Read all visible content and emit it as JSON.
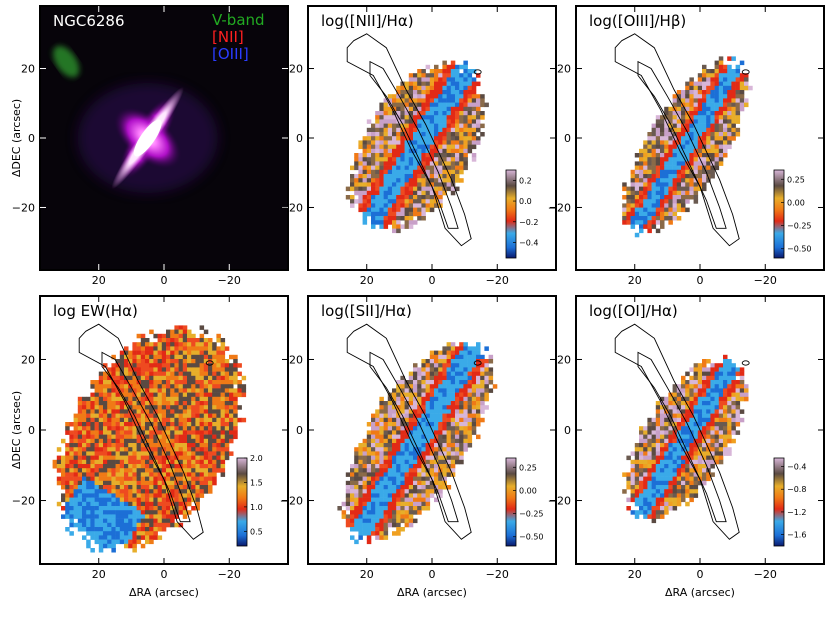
{
  "figure": {
    "x_axis_label": "ΔRA (arcsec)",
    "y_axis_label": "ΔDEC (arcsec)"
  },
  "chart_data": [
    {
      "type": "heatmap",
      "title": "NGC6286",
      "legend": [
        {
          "label": "V-band",
          "color": "#22aa22"
        },
        {
          "label": "[NII]",
          "color": "#ff2020"
        },
        {
          "label": "[OIII]",
          "color": "#2a3cff"
        }
      ],
      "xticks": [
        "20",
        "0",
        "−20"
      ],
      "yticks": [
        "20",
        "0",
        "−20"
      ],
      "x_ticks_value": [
        20,
        0,
        -20
      ],
      "y_ticks_value": [
        20,
        0,
        -20
      ],
      "xlim": [
        38,
        -38
      ],
      "ylim": [
        -38,
        38
      ],
      "xlabel": "",
      "ylabel": "ΔDEC (arcsec)"
    },
    {
      "type": "heatmap",
      "title": "log([NII]/Hα)",
      "colorbar_ticks": [
        "0.2",
        "0.0",
        "−0.2",
        "−0.4"
      ],
      "colorbar_range": [
        -0.55,
        0.3
      ],
      "xticks": [
        "20",
        "0",
        "−20"
      ],
      "yticks": [
        "20",
        "0",
        "−20"
      ],
      "xlim": [
        38,
        -38
      ],
      "ylim": [
        -38,
        38
      ],
      "xlabel": "",
      "ylabel": ""
    },
    {
      "type": "heatmap",
      "title": "log([OIII]/Hβ)",
      "colorbar_ticks": [
        "0.25",
        "0.00",
        "−0.25",
        "−0.50"
      ],
      "colorbar_range": [
        -0.6,
        0.35
      ],
      "xticks": [
        "20",
        "0",
        "−20"
      ],
      "yticks": [
        "20",
        "0",
        "−20"
      ],
      "xlim": [
        38,
        -38
      ],
      "ylim": [
        -38,
        38
      ],
      "xlabel": "",
      "ylabel": ""
    },
    {
      "type": "heatmap",
      "title": "log EW(Hα)",
      "colorbar_ticks": [
        "2.0",
        "1.5",
        "1.0",
        "0.5"
      ],
      "colorbar_range": [
        0.2,
        2.0
      ],
      "xticks": [
        "20",
        "0",
        "−20"
      ],
      "yticks": [
        "20",
        "0",
        "−20"
      ],
      "xlim": [
        38,
        -38
      ],
      "ylim": [
        -38,
        38
      ],
      "xlabel": "ΔRA (arcsec)",
      "ylabel": "ΔDEC (arcsec)"
    },
    {
      "type": "heatmap",
      "title": "log([SII]/Hα)",
      "colorbar_ticks": [
        "0.25",
        "0.00",
        "−0.25",
        "−0.50"
      ],
      "colorbar_range": [
        -0.6,
        0.35
      ],
      "xticks": [
        "20",
        "0",
        "−20"
      ],
      "yticks": [
        "20",
        "0",
        "−20"
      ],
      "xlim": [
        38,
        -38
      ],
      "ylim": [
        -38,
        38
      ],
      "xlabel": "ΔRA (arcsec)",
      "ylabel": ""
    },
    {
      "type": "heatmap",
      "title": "log([OI]/Hα)",
      "colorbar_ticks": [
        "−0.4",
        "−0.8",
        "−1.2",
        "−1.6"
      ],
      "colorbar_range": [
        -1.8,
        -0.25
      ],
      "xticks": [
        "20",
        "0",
        "−20"
      ],
      "yticks": [
        "20",
        "0",
        "−20"
      ],
      "xlim": [
        38,
        -38
      ],
      "ylim": [
        -38,
        38
      ],
      "xlabel": "ΔRA (arcsec)",
      "ylabel": ""
    }
  ]
}
